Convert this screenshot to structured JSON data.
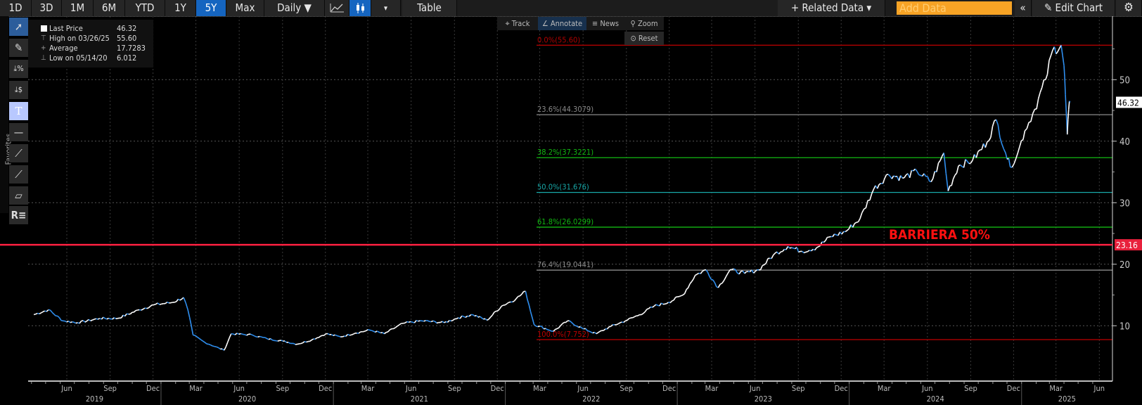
{
  "toolbar": {
    "ranges": [
      "1D",
      "3D",
      "1M",
      "6M",
      "YTD",
      "1Y",
      "5Y",
      "Max"
    ],
    "active_range": "5Y",
    "frequency": "Daily ▼",
    "line_icon": "line-chart-icon",
    "candle_icon": "candlestick-icon",
    "dropdown": "▾",
    "table": "Table",
    "related_data": "+ Related Data ▾",
    "add_data_placeholder": "Add Data",
    "collapse": "«",
    "edit_chart": "✎ Edit Chart",
    "settings_icon": "gear-icon"
  },
  "left_tools": {
    "favorites": "Favorites",
    "items": [
      "pointer-icon",
      "pencil-icon",
      "percent-level-icon",
      "dollar-level-icon",
      "text-icon",
      "horizontal-line-icon",
      "trend-line-icon",
      "ray-line-icon",
      "channel-icon",
      "r-legend-icon"
    ]
  },
  "chart_controls": {
    "track": "Track",
    "annotate": "Annotate",
    "news": "News",
    "zoom": "Zoom",
    "reset": "Reset"
  },
  "legend": {
    "last_price_label": "Last Price",
    "last_price": "46.32",
    "high_label": "High on 03/26/25",
    "high": "55.60",
    "average_label": "Average",
    "average": "17.7283",
    "low_label": "Low on 05/14/20",
    "low": "6.012"
  },
  "colors": {
    "up": "#ffffff",
    "down": "#2f8ff0",
    "barrier": "#ff2040",
    "accent": "#1565c0",
    "add_data": "#f7a325"
  },
  "chart_data": {
    "type": "line",
    "style": "candlestick",
    "frequency": "Daily",
    "ylim": [
      0,
      60
    ],
    "yticks": [
      10,
      20,
      30,
      40,
      50
    ],
    "grid": true,
    "x_month_labels": [
      "Jun",
      "Sep",
      "Dec",
      "Mar",
      "Jun",
      "Sep",
      "Dec",
      "Mar",
      "Jun",
      "Sep",
      "Dec",
      "Mar",
      "Jun",
      "Sep",
      "Dec",
      "Mar",
      "Jun",
      "Sep",
      "Dec",
      "Mar",
      "Jun",
      "Sep",
      "Dec",
      "Mar",
      "Jun"
    ],
    "x_years": [
      "2019",
      "2020",
      "2021",
      "2022",
      "2023",
      "2024",
      "2025"
    ],
    "series": [
      {
        "dates": [
          "2019-04-06",
          "2019-05-07",
          "2019-06-07",
          "2019-07-08",
          "2019-08-24",
          "2019-10-01",
          "2019-11-16",
          "2019-12-17",
          "2020-01-26",
          "2020-02-18",
          "2020-02-27",
          "2020-03-09",
          "2020-04-03",
          "2020-05-14",
          "2020-05-29",
          "2020-07-13",
          "2020-08-13",
          "2020-09-16",
          "2020-10-16",
          "2020-11-16",
          "2020-12-16",
          "2021-01-16",
          "2021-02-16",
          "2021-03-19",
          "2021-04-19",
          "2021-05-29",
          "2021-07-08",
          "2021-08-24",
          "2021-09-23",
          "2021-10-24",
          "2021-11-23",
          "2021-12-24",
          "2022-01-24",
          "2022-02-13",
          "2022-03-03",
          "2022-04-13",
          "2022-05-13",
          "2022-06-13",
          "2022-07-13",
          "2022-08-13",
          "2022-09-13",
          "2022-10-13",
          "2022-11-13",
          "2022-12-13",
          "2023-01-13",
          "2023-02-08",
          "2023-03-03",
          "2023-03-29",
          "2023-04-23",
          "2023-05-24",
          "2023-06-23",
          "2023-07-24",
          "2023-08-24",
          "2023-09-23",
          "2023-10-24",
          "2023-11-23",
          "2023-12-24",
          "2024-01-24",
          "2024-02-22",
          "2024-03-24",
          "2024-04-23",
          "2024-05-24",
          "2024-06-23",
          "2024-07-20",
          "2024-07-29",
          "2024-08-20",
          "2024-09-19",
          "2024-10-20",
          "2024-11-08",
          "2024-11-28",
          "2024-12-08",
          "2024-12-24",
          "2025-01-08",
          "2025-01-29",
          "2025-02-21",
          "2025-03-08",
          "2025-03-26",
          "2025-04-01",
          "2025-04-04",
          "2025-04-08",
          "2025-04-11",
          "2025-04-14"
        ],
        "values": [
          11.8,
          12.6,
          10.8,
          10.5,
          11.2,
          11.2,
          12.6,
          13.4,
          13.8,
          14.6,
          12.6,
          8.5,
          7.3,
          6.012,
          8.7,
          8.5,
          7.9,
          7.5,
          7.0,
          7.7,
          8.7,
          8.2,
          8.8,
          9.3,
          8.7,
          10.4,
          10.8,
          10.5,
          11.3,
          11.8,
          10.9,
          13.2,
          14.4,
          15.6,
          10.2,
          9.1,
          10.8,
          9.6,
          8.7,
          9.9,
          10.8,
          11.8,
          13.2,
          13.8,
          15.0,
          18.2,
          19.1,
          16.2,
          19.1,
          18.5,
          19.1,
          21.5,
          22.9,
          22.1,
          22.7,
          24.5,
          25.3,
          27.4,
          32.2,
          34.6,
          34.0,
          35.1,
          33.4,
          38.1,
          31.9,
          36.0,
          36.9,
          39.9,
          43.5,
          38.1,
          35.8,
          38.1,
          41.7,
          45.2,
          50.0,
          54.8,
          55.6,
          52.3,
          47.6,
          41.1,
          45.2,
          46.32
        ]
      }
    ],
    "last_price_label": "46.32",
    "fibonacci": [
      {
        "label": "0.0%(55.60)",
        "value": 55.6,
        "color": "#b00000"
      },
      {
        "label": "23.6%(44.3079)",
        "value": 44.3079,
        "color": "#8a8a8a"
      },
      {
        "label": "38.2%(37.3221)",
        "value": 37.3221,
        "color": "#12b812"
      },
      {
        "label": "50.0%(31.676)",
        "value": 31.676,
        "color": "#18a8a8"
      },
      {
        "label": "61.8%(26.0299)",
        "value": 26.0299,
        "color": "#12b812"
      },
      {
        "label": "76.4%(19.0441)",
        "value": 19.0441,
        "color": "#8a8a8a"
      },
      {
        "label": "100.0%(7.752)",
        "value": 7.752,
        "color": "#c00000"
      }
    ],
    "barrier": {
      "label": "BARRIERA 50%",
      "value": 23.16,
      "value_label": "23.16"
    }
  }
}
